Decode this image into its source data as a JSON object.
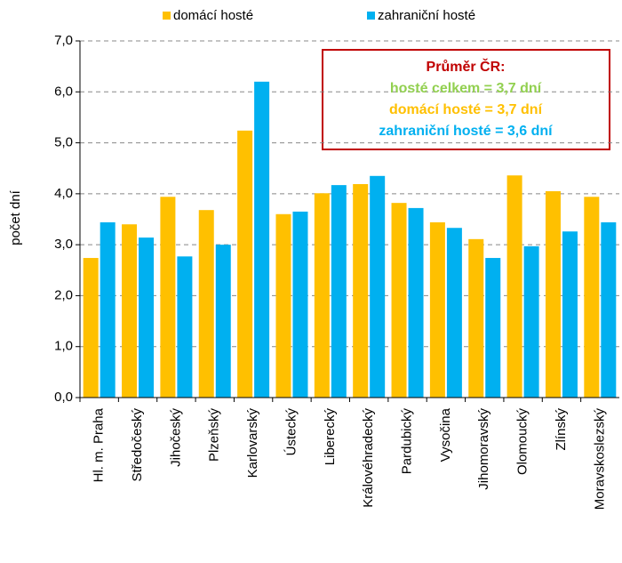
{
  "chart_data": {
    "type": "bar",
    "y_label": "počet dní",
    "categories": [
      "Hl. m. Praha",
      "Středočeský",
      "Jihočeský",
      "Plzeňský",
      "Karlovarský",
      "Ústecký",
      "Liberecký",
      "Královéhradecký",
      "Pardubický",
      "Vysočina",
      "Jihomoravský",
      "Olomoucký",
      "Zlínský",
      "Moravskoslezský"
    ],
    "series": [
      {
        "name": "domácí hosté",
        "color": "#ffc000",
        "values": [
          2.74,
          3.4,
          3.94,
          3.68,
          5.24,
          3.6,
          4.01,
          4.19,
          3.82,
          3.44,
          3.11,
          4.36,
          4.05,
          3.94
        ]
      },
      {
        "name": "zahraniční hosté",
        "color": "#00b0f0",
        "values": [
          3.44,
          3.14,
          2.77,
          3.0,
          6.2,
          3.65,
          4.17,
          4.35,
          3.72,
          3.33,
          2.74,
          2.97,
          3.26,
          3.44
        ]
      }
    ],
    "ylim": [
      0,
      7
    ],
    "yticks": [
      {
        "value": 0,
        "label": "0,0"
      },
      {
        "value": 1,
        "label": "1,0"
      },
      {
        "value": 2,
        "label": "2,0"
      },
      {
        "value": 3,
        "label": "3,0"
      },
      {
        "value": 4,
        "label": "4,0"
      },
      {
        "value": 5,
        "label": "5,0"
      },
      {
        "value": 6,
        "label": "6,0"
      },
      {
        "value": 7,
        "label": "7,0"
      }
    ],
    "grid": true,
    "legend": "top",
    "annotations": [
      {
        "text": "Průměr ČR:",
        "color": "#c00000"
      },
      {
        "text": "hosté celkem = 3,7 dní",
        "color": "#92d050"
      },
      {
        "text": "domácí hosté = 3,7 dní",
        "color": "#ffc000"
      },
      {
        "text": "zahraniční hosté = 3,6 dní",
        "color": "#00b0f0"
      }
    ]
  }
}
